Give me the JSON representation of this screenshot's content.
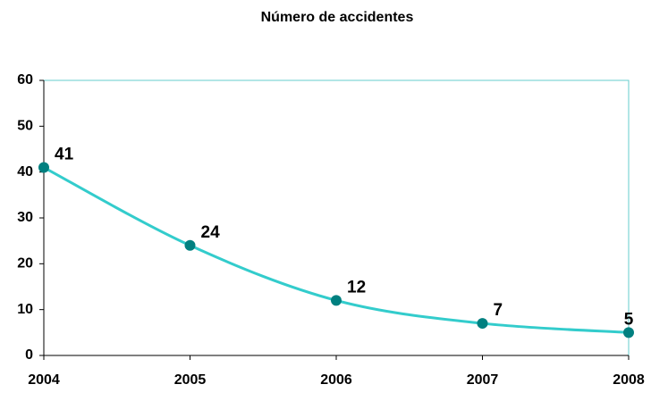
{
  "chart_data": {
    "type": "line",
    "title": "Número de accidentes",
    "x": [
      2004,
      2005,
      2006,
      2007,
      2008
    ],
    "series": [
      {
        "name": null,
        "color": "#33cccc",
        "marker_color": "#008080",
        "values": [
          41,
          24,
          12,
          7,
          5
        ]
      }
    ],
    "xlim": [
      2004,
      2008
    ],
    "xticks": [
      2004,
      2005,
      2006,
      2007,
      2008
    ],
    "ylim": [
      0,
      60
    ],
    "yticks": [
      0,
      10,
      20,
      30,
      40,
      50,
      60
    ],
    "grid": false,
    "smooth": true
  }
}
